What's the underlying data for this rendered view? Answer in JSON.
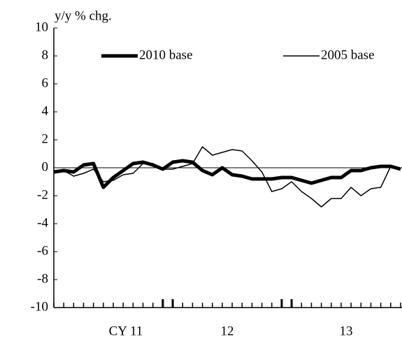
{
  "chart_data": {
    "type": "line",
    "y_label": "y/y % chg.",
    "categories": [
      null,
      null,
      null,
      null,
      null,
      null,
      null,
      null,
      null,
      null,
      null,
      null,
      null,
      null,
      null,
      null,
      null,
      null,
      null,
      null,
      null,
      null,
      null,
      null,
      null,
      null,
      null,
      null,
      null,
      null,
      null,
      null,
      null,
      null,
      null,
      null
    ],
    "year_labels": [
      "CY  11",
      "12",
      "13"
    ],
    "ylim": [
      -10,
      10
    ],
    "yticks": [
      -10,
      -8,
      -6,
      -4,
      -2,
      0,
      2,
      4,
      6,
      8,
      10
    ],
    "legend": "top",
    "series": [
      {
        "name": "2010 base",
        "color": "#000000",
        "width": 5,
        "values": [
          -0.3,
          -0.2,
          -0.3,
          0.2,
          0.3,
          -1.4,
          -0.7,
          -0.2,
          0.3,
          0.4,
          0.2,
          -0.1,
          0.4,
          0.5,
          0.4,
          -0.2,
          -0.5,
          0,
          -0.5,
          -0.6,
          -0.8,
          -0.8,
          -0.8,
          -0.7,
          -0.7,
          -0.9,
          -1.1,
          -0.9,
          -0.7,
          -0.7,
          -0.2,
          -0.2,
          0,
          0.1,
          0.1,
          -0.1
        ]
      },
      {
        "name": "2005 base",
        "color": "#000000",
        "width": 1.5,
        "values": [
          -0.4,
          -0.2,
          -0.6,
          -0.4,
          -0.1,
          -1.0,
          -0.9,
          -0.5,
          -0.4,
          0.3,
          0.3,
          -0.1,
          -0.1,
          0.1,
          0.3,
          1.5,
          0.9,
          1.1,
          1.3,
          1.2,
          0.5,
          -0.3,
          -1.7,
          -1.5,
          -1.0,
          -1.7,
          -2.2,
          -2.8,
          -2.2,
          -2.2,
          -1.4,
          -2.0,
          -1.5,
          -1.4,
          0.1,
          -0.1
        ]
      }
    ]
  }
}
